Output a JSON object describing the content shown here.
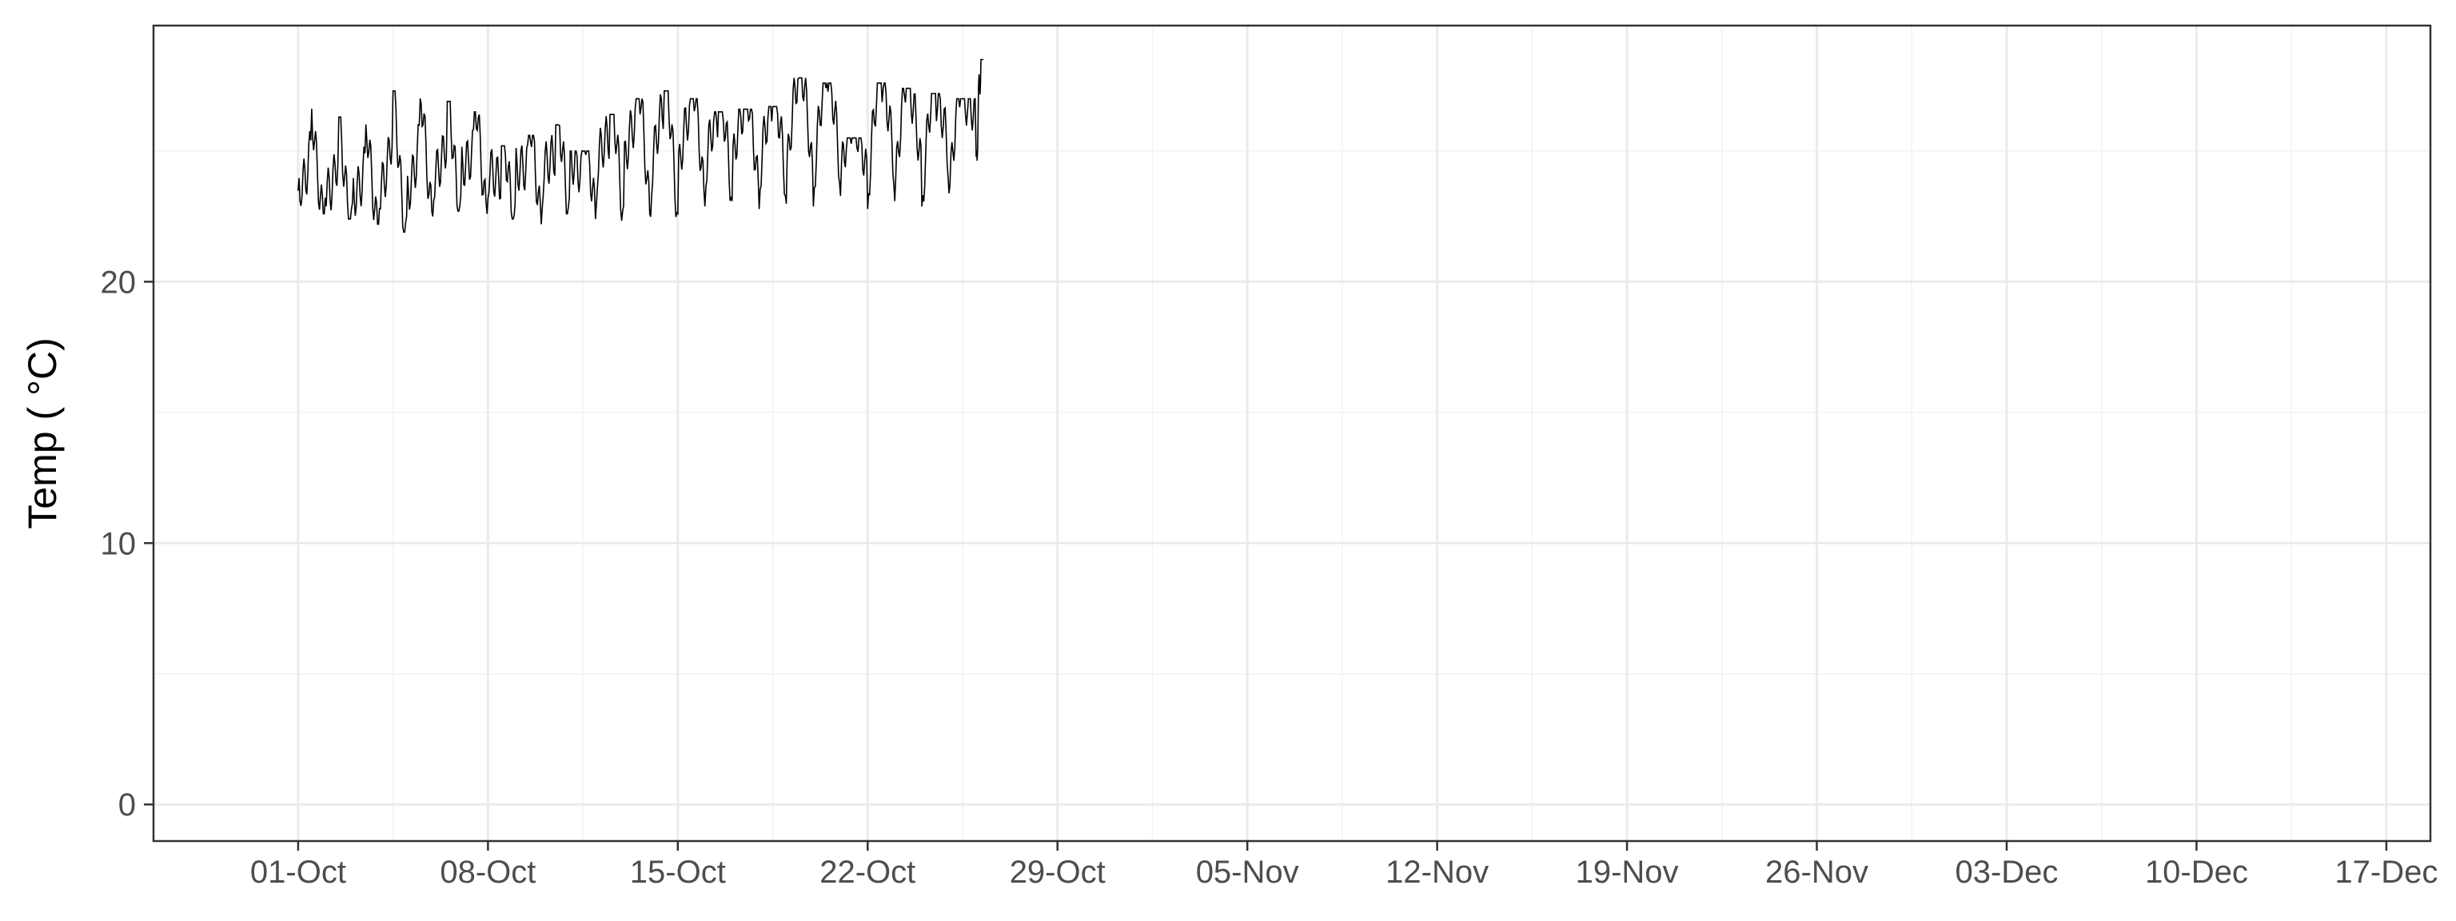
{
  "chart_data": {
    "type": "line",
    "title": "",
    "xlabel": "",
    "ylabel": "Temp ( °C)",
    "xlim": [
      "2023-09-25T16:00",
      "2023-12-18T15:00"
    ],
    "ylim": [
      -1.4,
      29.8
    ],
    "x_ticks": [
      "2023-10-01",
      "2023-10-08",
      "2023-10-15",
      "2023-10-22",
      "2023-10-29",
      "2023-11-05",
      "2023-11-12",
      "2023-11-19",
      "2023-11-26",
      "2023-12-03",
      "2023-12-10",
      "2023-12-17"
    ],
    "x_tick_labels": [
      "01-Oct",
      "08-Oct",
      "15-Oct",
      "22-Oct",
      "29-Oct",
      "05-Nov",
      "12-Nov",
      "19-Nov",
      "26-Nov",
      "03-Dec",
      "10-Dec",
      "17-Dec"
    ],
    "y_ticks": [
      0,
      10,
      20
    ],
    "y_tick_labels": [
      "0",
      "10",
      "20"
    ],
    "grid": true,
    "legend": "none",
    "series": [
      {
        "color": "#000000",
        "x": [
          "2023-10-01T00:00",
          "2023-10-01T12:00",
          "2023-10-02T00:00",
          "2023-10-02T12:00",
          "2023-10-03T00:00",
          "2023-10-03T12:00",
          "2023-10-04T00:00",
          "2023-10-04T12:00",
          "2023-10-05T00:00",
          "2023-10-05T12:00",
          "2023-10-06T00:00",
          "2023-10-06T12:00",
          "2023-10-07T00:00",
          "2023-10-07T12:00",
          "2023-10-08T00:00",
          "2023-10-08T12:00",
          "2023-10-09T00:00",
          "2023-10-09T12:00",
          "2023-10-10T00:00",
          "2023-10-10T12:00",
          "2023-10-11T00:00",
          "2023-10-11T12:00",
          "2023-10-12T00:00",
          "2023-10-12T12:00",
          "2023-10-13T00:00",
          "2023-10-13T12:00",
          "2023-10-14T00:00",
          "2023-10-14T12:00",
          "2023-10-15T00:00",
          "2023-10-15T12:00",
          "2023-10-16T00:00",
          "2023-10-16T12:00",
          "2023-10-17T00:00",
          "2023-10-17T12:00",
          "2023-10-18T00:00",
          "2023-10-18T12:00",
          "2023-10-19T00:00",
          "2023-10-19T12:00",
          "2023-10-20T00:00",
          "2023-10-20T12:00",
          "2023-10-21T00:00",
          "2023-10-21T12:00",
          "2023-10-22T00:00",
          "2023-10-22T12:00",
          "2023-10-23T00:00",
          "2023-10-23T12:00",
          "2023-10-24T00:00",
          "2023-10-24T12:00",
          "2023-10-25T00:00",
          "2023-10-25T12:00",
          "2023-10-26T00:00",
          "2023-10-26T06:00"
        ],
        "y": [
          23.5,
          26.6,
          23.2,
          26.3,
          23.0,
          26.0,
          22.8,
          27.3,
          22.5,
          27.0,
          23.1,
          26.9,
          23.3,
          26.5,
          23.2,
          25.2,
          23.0,
          25.6,
          22.8,
          26.0,
          23.2,
          25.0,
          23.0,
          26.4,
          22.9,
          27.0,
          22.5,
          27.3,
          22.6,
          27.0,
          22.9,
          26.5,
          23.1,
          26.6,
          22.8,
          26.7,
          23.0,
          27.8,
          22.9,
          27.6,
          23.3,
          25.5,
          22.8,
          27.6,
          23.1,
          27.4,
          22.9,
          27.2,
          23.4,
          27.0,
          24.8,
          28.5
        ]
      }
    ]
  }
}
